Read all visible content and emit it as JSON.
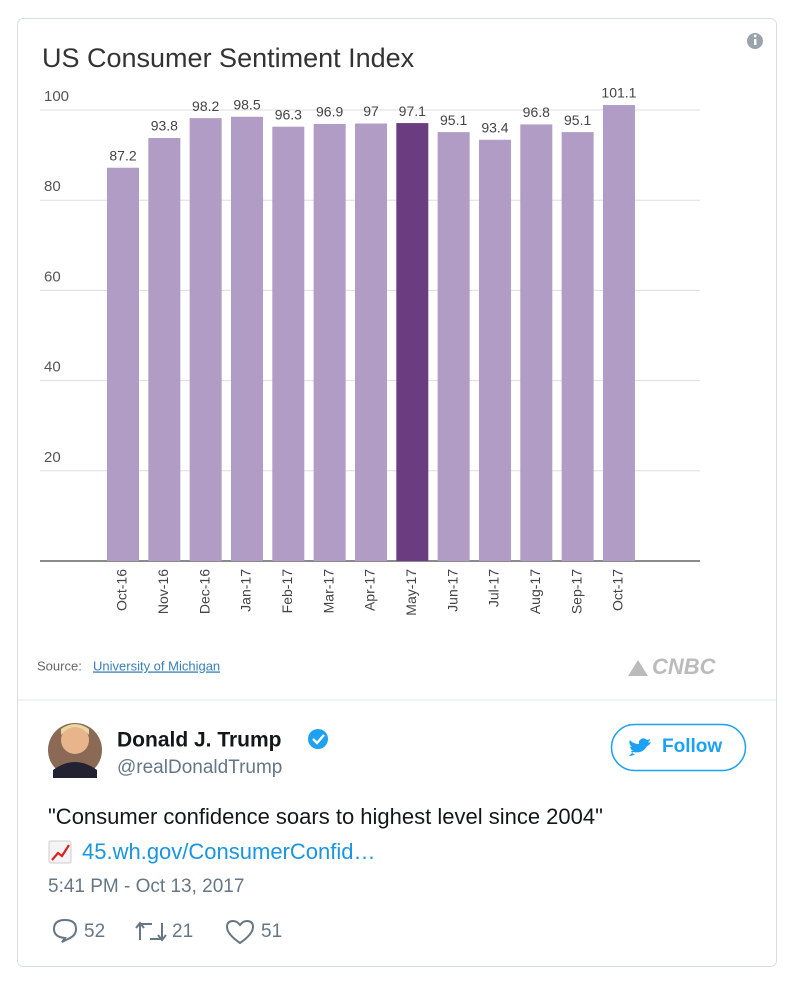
{
  "chart_data": {
    "type": "bar",
    "title": "US Consumer Sentiment Index",
    "categories": [
      "Oct-16",
      "Nov-16",
      "Dec-16",
      "Jan-17",
      "Feb-17",
      "Mar-17",
      "Apr-17",
      "May-17",
      "Jun-17",
      "Jul-17",
      "Aug-17",
      "Sep-17",
      "Oct-17"
    ],
    "values": [
      87.2,
      93.8,
      98.2,
      98.5,
      96.3,
      96.9,
      97,
      97.1,
      95.1,
      93.4,
      96.8,
      95.1,
      101.1
    ],
    "colors": [
      "#b09cc4",
      "#b09cc4",
      "#b09cc4",
      "#b09cc4",
      "#b09cc4",
      "#b09cc4",
      "#b09cc4",
      "#6b3d80",
      "#b09cc4",
      "#b09cc4",
      "#b09cc4",
      "#b09cc4",
      "#b09cc4"
    ],
    "ylim": [
      0,
      100
    ],
    "yticks": [
      20,
      40,
      60,
      80,
      100
    ],
    "grid": true
  },
  "footer": {
    "source_label": "Source:",
    "source_link": "University of Michigan",
    "brand": "CNBC"
  },
  "tweet": {
    "name": "Donald J. Trump",
    "handle": "@realDonaldTrump",
    "follow": "Follow",
    "text": "\"Consumer confidence soars to highest level since 2004\"",
    "link": "45.wh.gov/ConsumerConfid…",
    "timestamp": "5:41 PM - Oct 13, 2017",
    "replies": "52",
    "retweets": "21",
    "likes": "51"
  }
}
